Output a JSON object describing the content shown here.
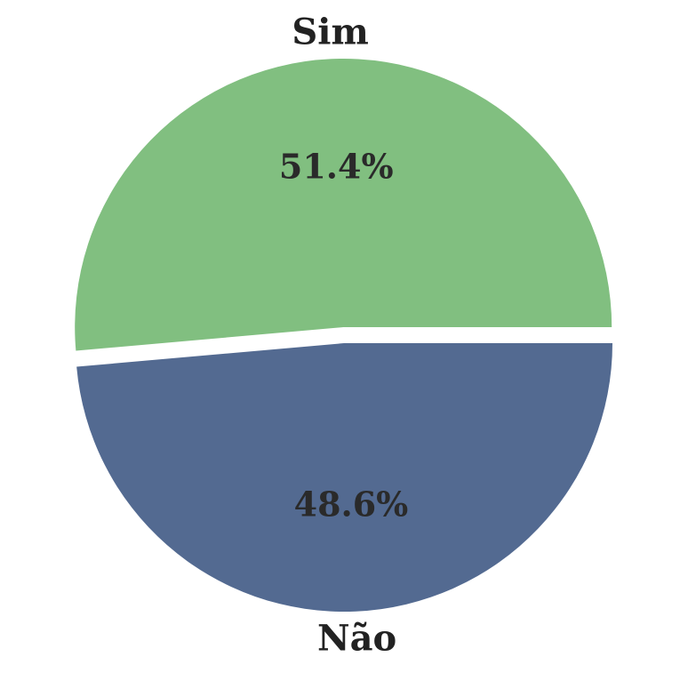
{
  "chart_data": {
    "type": "pie",
    "title": "",
    "slices": [
      {
        "label": "Sim",
        "value": 51.4,
        "value_label": "51.4%",
        "color": "#81bf80",
        "exploded": true
      },
      {
        "label": "Não",
        "value": 48.6,
        "value_label": "48.6%",
        "color": "#536a91",
        "exploded": false
      }
    ],
    "start_angle_deg": 0,
    "direction": "counterclockwise",
    "legend": "none"
  }
}
